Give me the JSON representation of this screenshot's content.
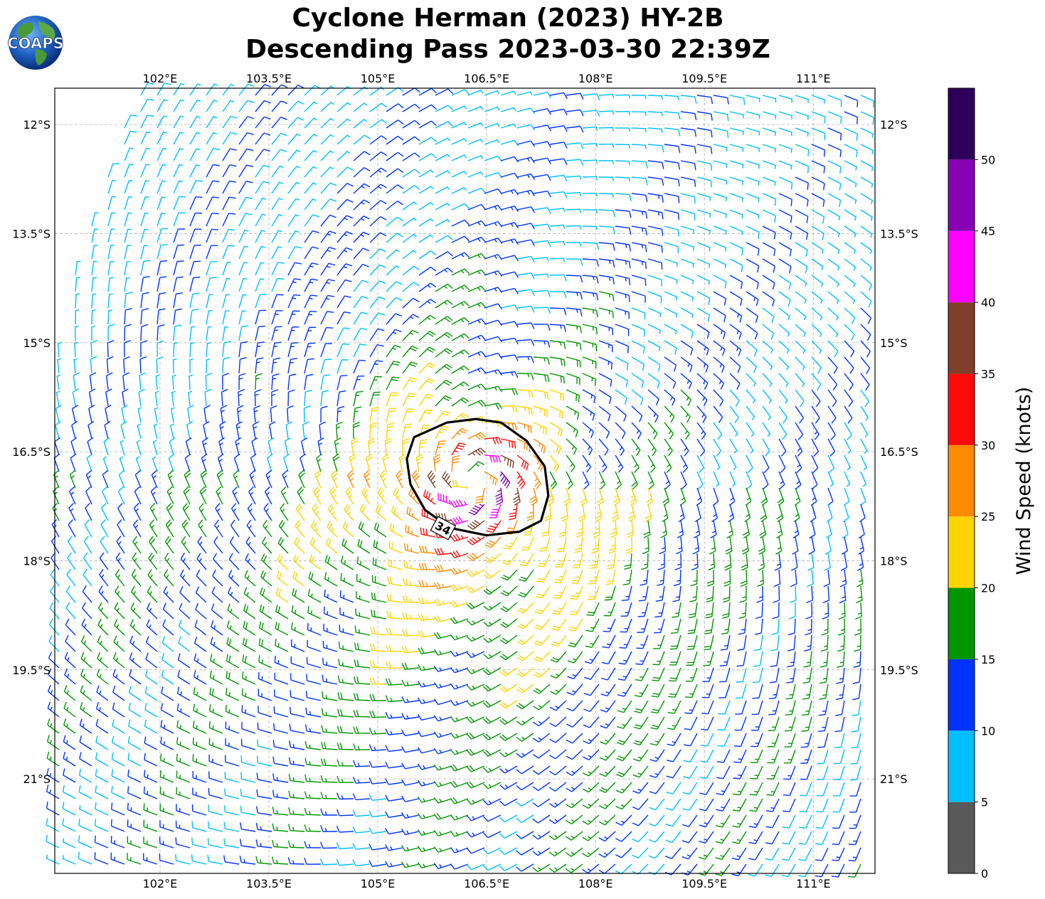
{
  "title": {
    "line1": "Cyclone Herman (2023) HY-2B",
    "line2": "Descending Pass 2023-03-30 22:39Z"
  },
  "logo": {
    "text": "COAPS",
    "icon": "globe-logo-icon"
  },
  "chart_data": {
    "type": "wind-barb-map",
    "title": "Cyclone Herman (2023) HY-2B Descending Pass 2023-03-30 22:39Z",
    "x_axis": {
      "range": [
        100.55,
        111.85
      ],
      "ticks": [
        102,
        103.5,
        105,
        106.5,
        108,
        109.5,
        111
      ],
      "tick_labels": [
        "102°E",
        "103.5°E",
        "105°E",
        "106.5°E",
        "108°E",
        "109.5°E",
        "111°E"
      ]
    },
    "y_axis": {
      "range": [
        -22.3,
        -11.5
      ],
      "ticks": [
        -12,
        -13.5,
        -15,
        -16.5,
        -18,
        -19.5,
        -21
      ],
      "tick_labels": [
        "12°S",
        "13.5°S",
        "15°S",
        "16.5°S",
        "18°S",
        "19.5°S",
        "21°S"
      ]
    },
    "grid": true,
    "cyclone_center": {
      "lon": 106.3,
      "lat": -16.9
    },
    "contour_34kt": {
      "label": "34",
      "lon": [
        105.95,
        106.35,
        106.7,
        107.05,
        107.3,
        107.35,
        107.25,
        106.95,
        106.5,
        106.0,
        105.65,
        105.45,
        105.4,
        105.5,
        105.95
      ],
      "lat": [
        -16.1,
        -16.05,
        -16.1,
        -16.35,
        -16.7,
        -17.1,
        -17.45,
        -17.6,
        -17.65,
        -17.55,
        -17.3,
        -16.95,
        -16.6,
        -16.3,
        -16.1
      ]
    },
    "colorbar": {
      "label": "Wind Speed (knots)",
      "bounds": [
        0,
        5,
        10,
        15,
        20,
        25,
        30,
        35,
        40,
        45,
        50,
        55
      ],
      "tick_labels": [
        "0",
        "5",
        "10",
        "15",
        "20",
        "25",
        "30",
        "35",
        "40",
        "45",
        "50"
      ],
      "colors": [
        "#595959",
        "#00bfff",
        "#0033ff",
        "#009600",
        "#ffd300",
        "#ff8c00",
        "#ff0a0a",
        "#7f3f28",
        "#ff00ff",
        "#8800b4",
        "#2e0059"
      ]
    }
  }
}
